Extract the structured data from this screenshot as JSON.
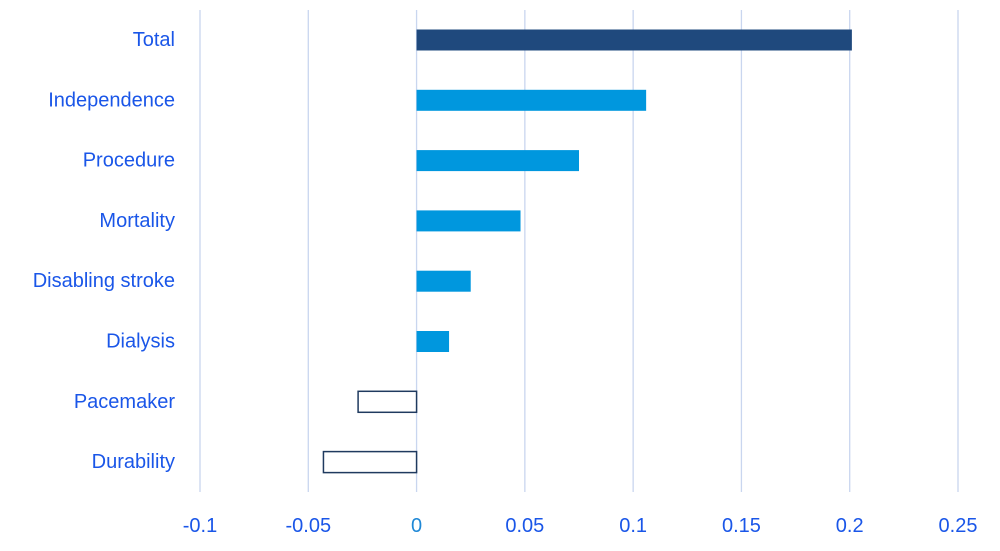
{
  "chart_data": {
    "type": "bar",
    "orientation": "horizontal",
    "title": "",
    "xlabel": "",
    "ylabel": "",
    "categories": [
      "Total",
      "Independence",
      "Procedure",
      "Mortality",
      "Disabling stroke",
      "Dialysis",
      "Pacemaker",
      "Durability"
    ],
    "values": [
      0.201,
      0.106,
      0.075,
      0.048,
      0.025,
      0.015,
      -0.027,
      -0.043
    ],
    "xlim": [
      -0.1,
      0.25
    ],
    "xticks": [
      -0.1,
      -0.05,
      0,
      0.05,
      0.1,
      0.15,
      0.2,
      0.25
    ],
    "xtick_labels": [
      "-0.1",
      "-0.05",
      "0",
      "0.05",
      "0.1",
      "0.15",
      "0.2",
      "0.25"
    ],
    "grid": true,
    "legend": "none",
    "colors": {
      "total_bar": "#1f497d",
      "positive_bar": "#0097de",
      "negative_bar_fill": "#ffffff",
      "negative_bar_stroke": "#1f3a5f",
      "label_text": "#1a56e8",
      "zero_tick_text": "#1f88d6",
      "gridline": "#c9d6ef"
    }
  }
}
